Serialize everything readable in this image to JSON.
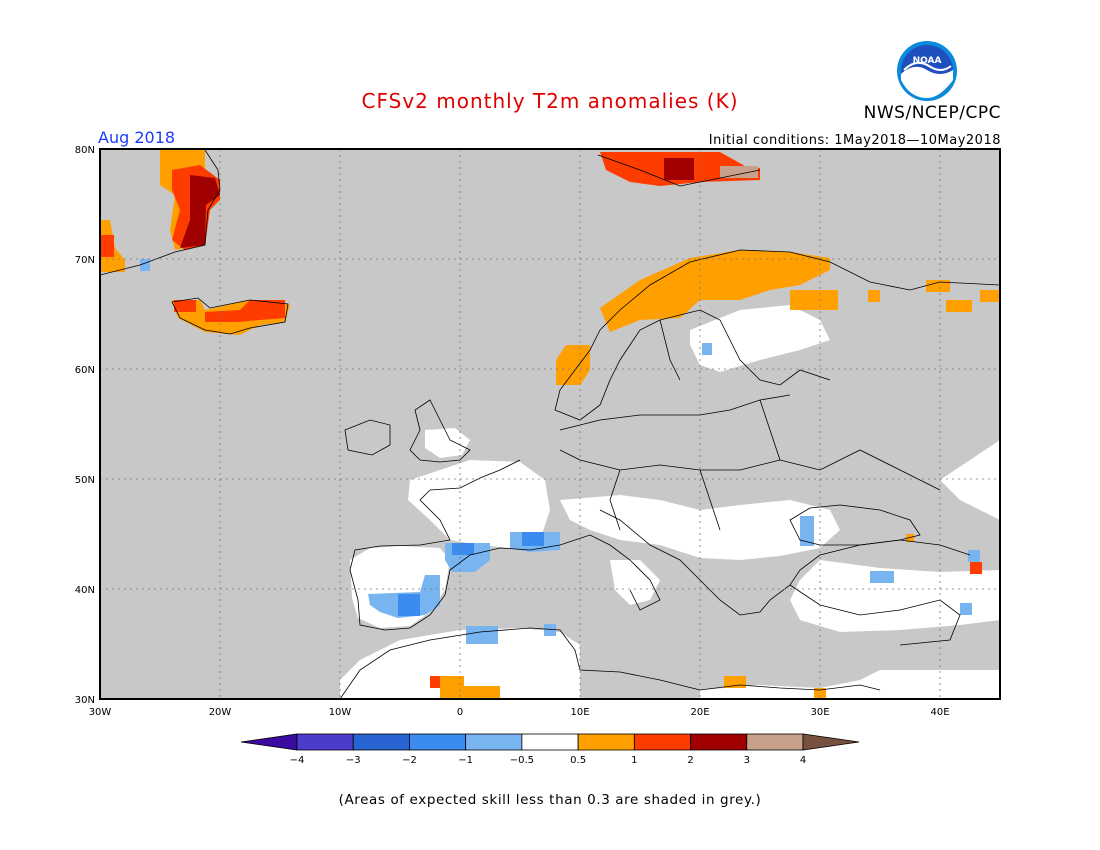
{
  "header": {
    "title": "CFSv2 monthly T2m anomalies (K)",
    "agency": "NWS/NCEP/CPC",
    "logo_text": "NOAA",
    "period": "Aug 2018",
    "initial_conditions": "Initial conditions: 1May2018—10May2018"
  },
  "colors": {
    "title": "#e00000",
    "period": "#1c3cff",
    "grey_mask": "#c8c8c8",
    "coast": "#000000"
  },
  "map": {
    "lat_labels": [
      "80N",
      "70N",
      "60N",
      "50N",
      "40N",
      "30N"
    ],
    "lon_labels": [
      "30W",
      "20W",
      "10W",
      "0",
      "10E",
      "20E",
      "30E",
      "40E"
    ]
  },
  "colorbar": {
    "bins": [
      {
        "color": "#3c0aa0"
      },
      {
        "color": "#4b3ccc"
      },
      {
        "color": "#2864d2"
      },
      {
        "color": "#3c8cf0"
      },
      {
        "color": "#78b4f0"
      },
      {
        "color": "#ffffff"
      },
      {
        "color": "#ffa000"
      },
      {
        "color": "#ff3c00"
      },
      {
        "color": "#a00000"
      },
      {
        "color": "#c8a08c"
      },
      {
        "color": "#785040"
      }
    ],
    "labels": [
      "−4",
      "−3",
      "−2",
      "−1",
      "−0.5",
      "0.5",
      "1",
      "2",
      "3",
      "4"
    ]
  },
  "footnote": "(Areas of expected skill less than 0.3 are shaded in grey.)"
}
